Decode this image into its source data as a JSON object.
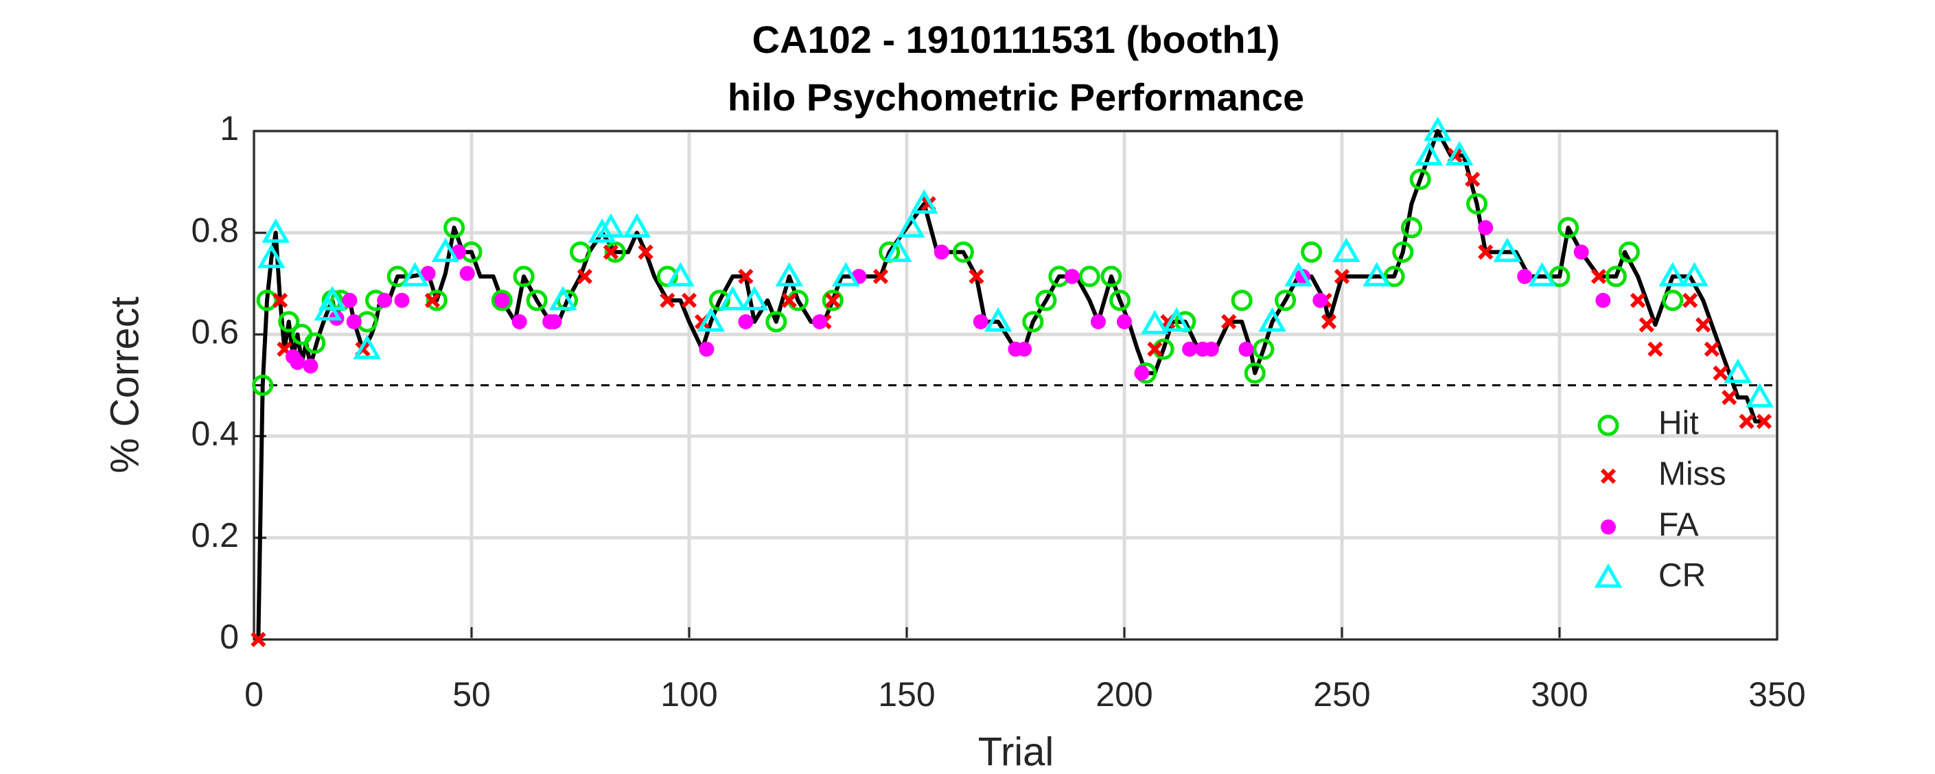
{
  "chart_data": {
    "type": "line",
    "title": "CA102 - 1910111531 (booth1)",
    "subtitle": "hilo Psychometric Performance",
    "x_label": "Trial",
    "y_label": "% Correct",
    "xlim": [
      0,
      350
    ],
    "xticks": [
      0,
      50,
      100,
      150,
      200,
      250,
      300,
      350
    ],
    "ylim": [
      0,
      1
    ],
    "yticks": [
      0,
      0.2,
      0.4,
      0.6,
      0.8,
      1
    ],
    "grid": true,
    "legend": "lower right",
    "reference_line": 0.5,
    "line": {
      "color": "#000000",
      "x": [
        1,
        2,
        3,
        4,
        5,
        6,
        7,
        8,
        9,
        10,
        11,
        12,
        13,
        14,
        15,
        16,
        17,
        18,
        19,
        20,
        22,
        23,
        25,
        26,
        27,
        28,
        29,
        31,
        33,
        36,
        40,
        42,
        44,
        46,
        48,
        50,
        52,
        55,
        57,
        60,
        62,
        65,
        68,
        70,
        72,
        75,
        77,
        80,
        83,
        86,
        88,
        90,
        92,
        95,
        98,
        100,
        103,
        105,
        107,
        110,
        113,
        115,
        118,
        120,
        123,
        125,
        128,
        131,
        133,
        135,
        139,
        144,
        146,
        150,
        154,
        157,
        160,
        163,
        166,
        168,
        171,
        175,
        177,
        179,
        182,
        185,
        189,
        192,
        194,
        197,
        199,
        201,
        203,
        205,
        207,
        209,
        211,
        214,
        217,
        221,
        224,
        227,
        229,
        230,
        232,
        234,
        237,
        240,
        243,
        246,
        247,
        250,
        254,
        258,
        262,
        264,
        266,
        268,
        270,
        272,
        275,
        278,
        281,
        283,
        287,
        290,
        293,
        297,
        300,
        302,
        305,
        309,
        313,
        315,
        318,
        320,
        322,
        324,
        326,
        330,
        333,
        335,
        337,
        339,
        341,
        343,
        345,
        347
      ],
      "values": [
        0,
        0.5,
        0.667,
        0.75,
        0.8,
        0.667,
        0.571,
        0.625,
        0.556,
        0.6,
        0.545,
        0.583,
        0.538,
        0.571,
        0.6,
        0.625,
        0.647,
        0.667,
        0.632,
        0.667,
        0.667,
        0.625,
        0.571,
        0.583,
        0.6,
        0.625,
        0.667,
        0.667,
        0.714,
        0.714,
        0.72,
        0.667,
        0.72,
        0.81,
        0.762,
        0.762,
        0.714,
        0.714,
        0.667,
        0.625,
        0.714,
        0.667,
        0.625,
        0.625,
        0.667,
        0.714,
        0.762,
        0.8,
        0.762,
        0.762,
        0.8,
        0.762,
        0.714,
        0.667,
        0.667,
        0.625,
        0.571,
        0.625,
        0.667,
        0.714,
        0.714,
        0.625,
        0.667,
        0.625,
        0.714,
        0.667,
        0.625,
        0.625,
        0.667,
        0.714,
        0.714,
        0.714,
        0.762,
        0.81,
        0.857,
        0.762,
        0.762,
        0.762,
        0.714,
        0.625,
        0.625,
        0.571,
        0.571,
        0.625,
        0.667,
        0.714,
        0.714,
        0.667,
        0.625,
        0.714,
        0.667,
        0.625,
        0.571,
        0.524,
        0.524,
        0.571,
        0.625,
        0.625,
        0.571,
        0.571,
        0.625,
        0.625,
        0.571,
        0.524,
        0.571,
        0.625,
        0.667,
        0.714,
        0.714,
        0.667,
        0.625,
        0.714,
        0.714,
        0.714,
        0.714,
        0.762,
        0.857,
        0.905,
        0.952,
        1,
        0.952,
        0.952,
        0.857,
        0.762,
        0.762,
        0.762,
        0.714,
        0.714,
        0.714,
        0.81,
        0.762,
        0.714,
        0.714,
        0.762,
        0.714,
        0.667,
        0.619,
        0.667,
        0.714,
        0.714,
        0.667,
        0.619,
        0.571,
        0.524,
        0.476,
        0.476,
        0.429,
        0.429
      ]
    },
    "series": [
      {
        "name": "Hit",
        "color": "#00e000",
        "marker": "open-circle",
        "x": [
          2,
          3,
          8,
          11,
          14,
          18,
          20,
          26,
          28,
          33,
          42,
          46,
          50,
          57,
          62,
          65,
          72,
          75,
          83,
          95,
          107,
          120,
          125,
          133,
          146,
          163,
          179,
          182,
          185,
          192,
          197,
          199,
          205,
          209,
          214,
          227,
          230,
          232,
          237,
          243,
          262,
          264,
          266,
          268,
          281,
          300,
          302,
          313,
          316,
          326
        ],
        "values": [
          0.5,
          0.667,
          0.625,
          0.6,
          0.583,
          0.667,
          0.667,
          0.625,
          0.667,
          0.714,
          0.667,
          0.81,
          0.762,
          0.667,
          0.714,
          0.667,
          0.667,
          0.762,
          0.762,
          0.714,
          0.667,
          0.625,
          0.667,
          0.667,
          0.762,
          0.762,
          0.625,
          0.667,
          0.714,
          0.714,
          0.714,
          0.667,
          0.524,
          0.571,
          0.625,
          0.667,
          0.524,
          0.571,
          0.667,
          0.762,
          0.714,
          0.762,
          0.81,
          0.905,
          0.857,
          0.714,
          0.81,
          0.714,
          0.762,
          0.667
        ]
      },
      {
        "name": "Miss",
        "color": "#ff0000",
        "marker": "cross",
        "x": [
          1,
          6,
          7,
          25,
          41,
          76,
          82,
          90,
          95,
          100,
          103,
          113,
          123,
          131,
          133,
          144,
          155,
          166,
          207,
          210,
          224,
          246,
          247,
          250,
          276,
          280,
          283,
          309,
          318,
          320,
          322,
          330,
          333,
          335,
          337,
          339,
          343,
          347
        ],
        "values": [
          0,
          0.667,
          0.571,
          0.571,
          0.667,
          0.714,
          0.762,
          0.762,
          0.667,
          0.667,
          0.625,
          0.714,
          0.667,
          0.625,
          0.667,
          0.714,
          0.857,
          0.714,
          0.571,
          0.625,
          0.625,
          0.667,
          0.625,
          0.714,
          0.952,
          0.905,
          0.762,
          0.714,
          0.667,
          0.619,
          0.571,
          0.667,
          0.619,
          0.571,
          0.524,
          0.476,
          0.429,
          0.429
        ]
      },
      {
        "name": "FA",
        "color": "#ff00ff",
        "marker": "filled-circle",
        "x": [
          9,
          10,
          13,
          19,
          22,
          23,
          30,
          34,
          40,
          47,
          49,
          57,
          61,
          68,
          69,
          104,
          113,
          130,
          139,
          158,
          167,
          175,
          177,
          188,
          194,
          200,
          204,
          215,
          218,
          220,
          228,
          241,
          245,
          283,
          292,
          305,
          310
        ],
        "values": [
          0.556,
          0.545,
          0.538,
          0.632,
          0.667,
          0.625,
          0.667,
          0.667,
          0.72,
          0.762,
          0.72,
          0.667,
          0.625,
          0.625,
          0.625,
          0.571,
          0.625,
          0.625,
          0.714,
          0.762,
          0.625,
          0.571,
          0.571,
          0.714,
          0.625,
          0.625,
          0.524,
          0.571,
          0.571,
          0.571,
          0.571,
          0.714,
          0.667,
          0.81,
          0.714,
          0.762,
          0.667
        ]
      },
      {
        "name": "CR",
        "color": "#00ffff",
        "marker": "open-triangle",
        "x": [
          4,
          5,
          17,
          18,
          26,
          37,
          44,
          71,
          80,
          82,
          88,
          98,
          105,
          110,
          115,
          123,
          136,
          148,
          151,
          154,
          171,
          207,
          212,
          234,
          240,
          251,
          258,
          270,
          272,
          277,
          288,
          296,
          326,
          331,
          341,
          346
        ],
        "values": [
          0.75,
          0.8,
          0.647,
          0.667,
          0.571,
          0.714,
          0.762,
          0.667,
          0.8,
          0.81,
          0.81,
          0.714,
          0.625,
          0.667,
          0.667,
          0.714,
          0.714,
          0.762,
          0.81,
          0.857,
          0.625,
          0.62,
          0.625,
          0.625,
          0.714,
          0.762,
          0.714,
          0.952,
          1,
          0.952,
          0.762,
          0.714,
          0.714,
          0.714,
          0.524,
          0.476
        ]
      }
    ]
  }
}
